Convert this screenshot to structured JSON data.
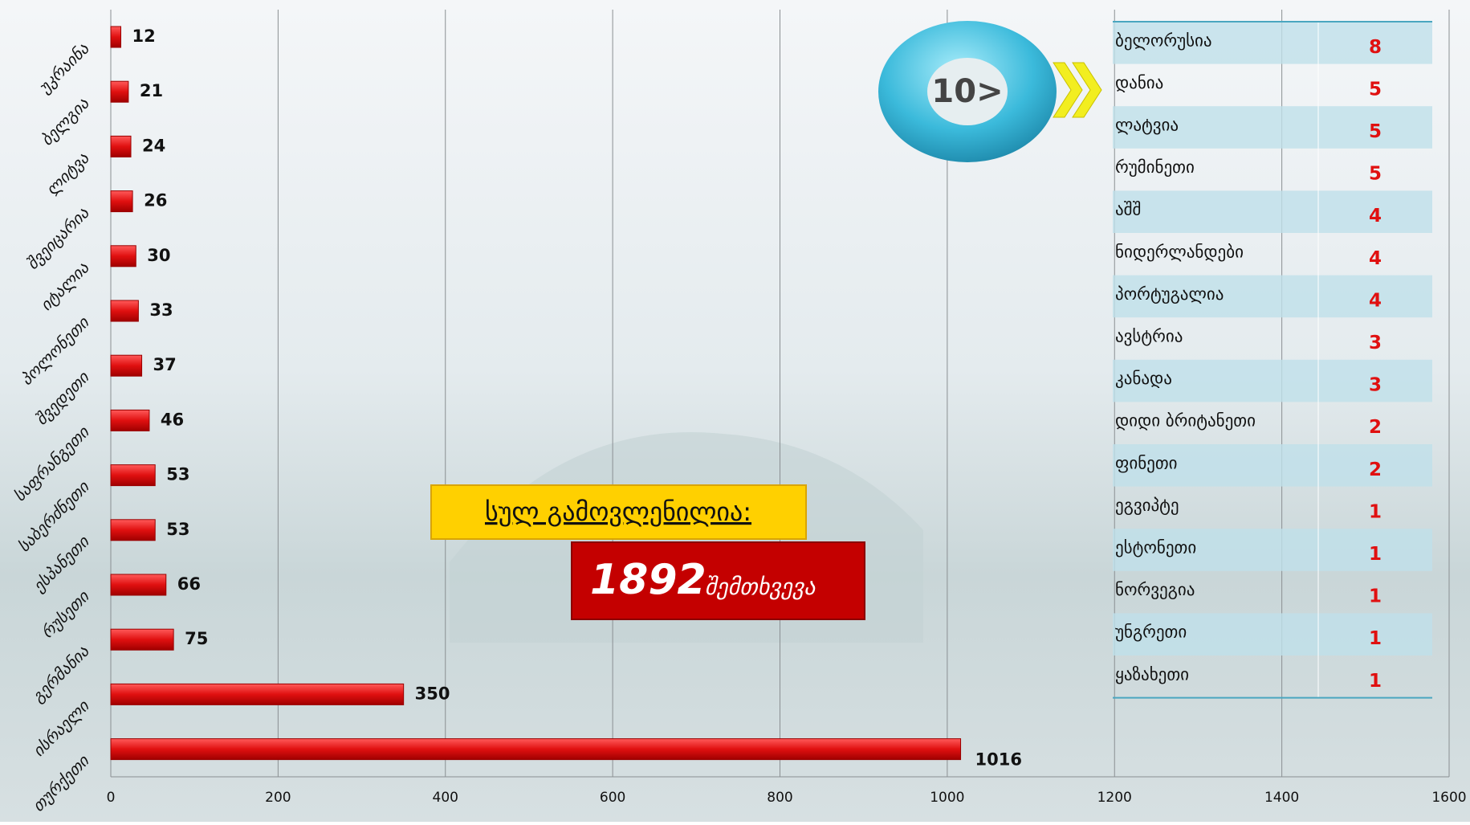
{
  "chart_data": {
    "type": "bar",
    "orientation": "horizontal",
    "categories": [
      "უკრაინა",
      "ბელგია",
      "ლიტვა",
      "შვეიცარია",
      "იტალია",
      "პოლონეთი",
      "შვედეთი",
      "საფრანგეთი",
      "საბერძნეთი",
      "ესპანეთი",
      "რუსეთი",
      "გერმანია",
      "ისრაელი",
      "თურქეთი"
    ],
    "values": [
      12,
      21,
      24,
      26,
      30,
      33,
      37,
      46,
      53,
      53,
      66,
      75,
      350,
      1016
    ],
    "color": "#e01010",
    "xlim": [
      0,
      1600
    ],
    "xticks": [
      0,
      200,
      400,
      600,
      800,
      1000,
      1200,
      1400,
      1600
    ],
    "grid": true
  },
  "badge": "10>",
  "callout": {
    "label": "სულ გამოვლენილია:",
    "number": "1892",
    "unit": "შემთხვევა"
  },
  "table": {
    "rows": [
      [
        "ბელორუსია",
        "8"
      ],
      [
        "დანია",
        "5"
      ],
      [
        "ლატვია",
        "5"
      ],
      [
        "რუმინეთი",
        "5"
      ],
      [
        "აშშ",
        "4"
      ],
      [
        "ნიდერლანდები",
        "4"
      ],
      [
        "პორტუგალია",
        "4"
      ],
      [
        "ავსტრია",
        "3"
      ],
      [
        "კანადა",
        "3"
      ],
      [
        "დიდი ბრიტანეთი",
        "2"
      ],
      [
        "ფინეთი",
        "2"
      ],
      [
        "ეგვიპტე",
        "1"
      ],
      [
        "ესტონეთი",
        "1"
      ],
      [
        "ნორვეგია",
        "1"
      ],
      [
        "უნგრეთი",
        "1"
      ],
      [
        "ყაზახეთი",
        "1"
      ]
    ]
  }
}
